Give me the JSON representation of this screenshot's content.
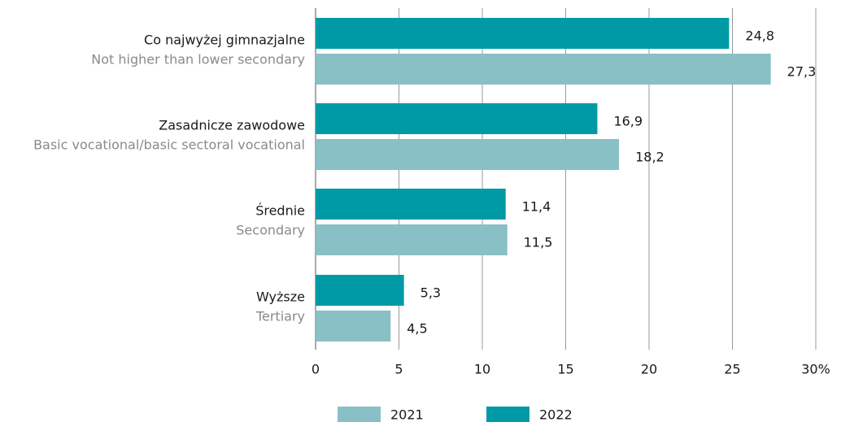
{
  "chart_data": {
    "type": "bar",
    "orientation": "horizontal",
    "categories": [
      "Co najwyżej gimnazjalne",
      "Zasadnicze zawodowe",
      "Średnie",
      "Wyższe"
    ],
    "categories_en": [
      "Not higher than lower secondary",
      "Basic vocational/basic sectoral vocational",
      "Secondary",
      "Tertiary"
    ],
    "series": [
      {
        "name": "2021",
        "color": "#88c0c6",
        "values": [
          27.3,
          18.2,
          11.5,
          4.5
        ],
        "value_labels": [
          "27,3",
          "18,2",
          "11,5",
          "4,5"
        ]
      },
      {
        "name": "2022",
        "color": "#009aa6",
        "values": [
          24.8,
          16.9,
          11.4,
          5.3
        ],
        "value_labels": [
          "24,8",
          "16,9",
          "11,4",
          "5,3"
        ]
      }
    ],
    "xlim": [
      0,
      30
    ],
    "xticks": [
      0,
      5,
      10,
      15,
      20,
      25,
      {
        "value": 30,
        "label": "30%"
      }
    ],
    "grid": true,
    "legend": "bottom"
  }
}
